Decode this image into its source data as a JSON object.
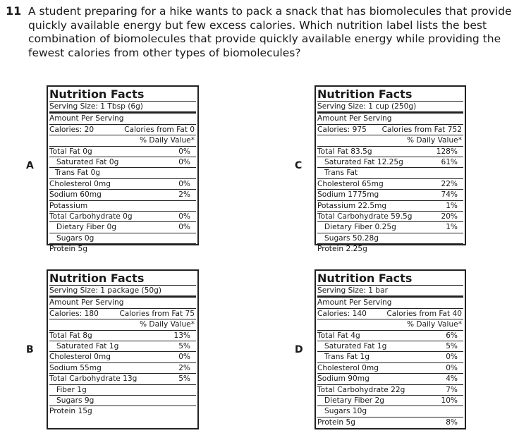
{
  "question": {
    "number": "11",
    "text": "A student preparing for a hike wants to pack a snack that has biomolecules that provide quickly available energy but few excess calories. Which nutrition label lists the best combination of biomolecules that provide quickly available energy while providing the fewest calories from other types of biomolecules?"
  },
  "labels": {
    "A": {
      "letter": "A",
      "title": "Nutrition Facts",
      "serving": "Serving Size: 1 Tbsp (6g)",
      "amount": "Amount Per Serving",
      "calories": "Calories: 20",
      "fat_cal": "Calories from Fat 0",
      "dv_header": "% Daily Value*",
      "rows": [
        {
          "name": "Total Fat 0g",
          "pct": "0%"
        },
        {
          "name": "Saturated Fat 0g",
          "pct": "0%"
        },
        {
          "name": "Trans Fat 0g",
          "pct": ""
        },
        {
          "name": "Cholesterol 0mg",
          "pct": "0%"
        },
        {
          "name": "Sodium 60mg",
          "pct": "2%"
        },
        {
          "name": "Potassium",
          "pct": ""
        },
        {
          "name": "Total Carbohydrate 0g",
          "pct": "0%"
        },
        {
          "name": "Dietary Fiber 0g",
          "pct": "0%"
        },
        {
          "name": "Sugars 0g",
          "pct": ""
        },
        {
          "name": "Protein 5g",
          "pct": ""
        }
      ]
    },
    "B": {
      "letter": "B",
      "title": "Nutrition Facts",
      "serving": "Serving Size: 1 package (50g)",
      "amount": "Amount Per Serving",
      "calories": "Calories: 180",
      "fat_cal": "Calories from Fat 75",
      "dv_header": "% Daily Value*",
      "rows": [
        {
          "name": "Total Fat 8g",
          "pct": "13%"
        },
        {
          "name": "Saturated Fat 1g",
          "pct": "5%"
        },
        {
          "name": "Cholesterol 0mg",
          "pct": "0%"
        },
        {
          "name": "Sodium 55mg",
          "pct": "2%"
        },
        {
          "name": "Total Carbohydrate 13g",
          "pct": "5%"
        },
        {
          "name": "Fiber 1g",
          "pct": ""
        },
        {
          "name": "Sugars 9g",
          "pct": ""
        },
        {
          "name": "Protein 15g",
          "pct": ""
        }
      ]
    },
    "C": {
      "letter": "C",
      "title": "Nutrition Facts",
      "serving": "Serving Size: 1 cup (250g)",
      "amount": "Amount Per Serving",
      "calories": "Calories: 975",
      "fat_cal": "Calories from Fat 752",
      "dv_header": "% Daily Value*",
      "rows": [
        {
          "name": "Total Fat 83.5g",
          "pct": "128%"
        },
        {
          "name": "Saturated Fat 12.25g",
          "pct": "61%"
        },
        {
          "name": "Trans Fat",
          "pct": ""
        },
        {
          "name": "Cholesterol 65mg",
          "pct": "22%"
        },
        {
          "name": "Sodium 1775mg",
          "pct": "74%"
        },
        {
          "name": "Potassium 22.5mg",
          "pct": "1%"
        },
        {
          "name": "Total Carbohydrate 59.5g",
          "pct": "20%"
        },
        {
          "name": "Dietary Fiber 0.25g",
          "pct": "1%"
        },
        {
          "name": "Sugars 50.28g",
          "pct": ""
        },
        {
          "name": "Protein 2.25g",
          "pct": ""
        }
      ]
    },
    "D": {
      "letter": "D",
      "title": "Nutrition Facts",
      "serving": "Serving Size: 1 bar",
      "amount": "Amount Per Serving",
      "calories": "Calories: 140",
      "fat_cal": "Calories from Fat 40",
      "dv_header": "% Daily Value*",
      "rows": [
        {
          "name": "Total Fat 4g",
          "pct": "6%"
        },
        {
          "name": "Saturated Fat 1g",
          "pct": "5%"
        },
        {
          "name": "Trans Fat 1g",
          "pct": "0%"
        },
        {
          "name": "Cholesterol 0mg",
          "pct": "0%"
        },
        {
          "name": "Sodium 90mg",
          "pct": "4%"
        },
        {
          "name": "Total Carbohydrate 22g",
          "pct": "7%"
        },
        {
          "name": "Dietary Fiber 2g",
          "pct": "10%"
        },
        {
          "name": "Sugars 10g",
          "pct": ""
        },
        {
          "name": "Protein 5g",
          "pct": "8%"
        }
      ]
    }
  }
}
